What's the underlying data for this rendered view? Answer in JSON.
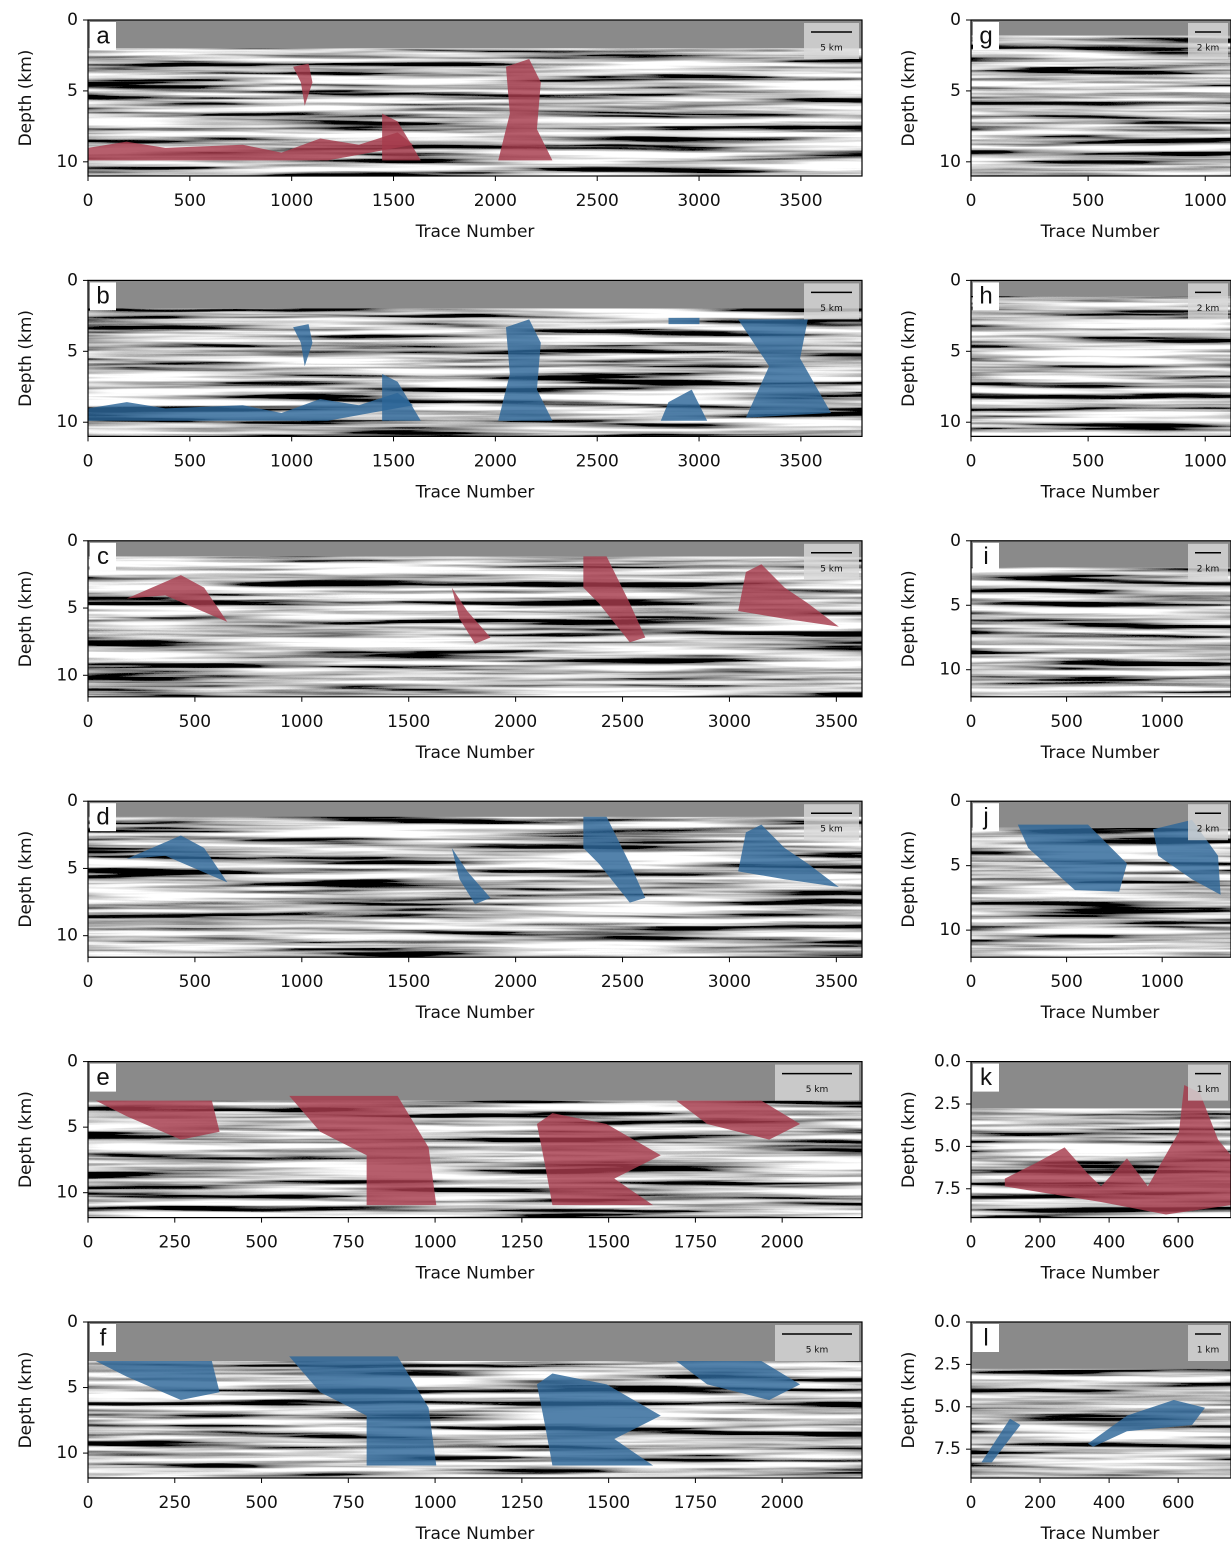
{
  "chart_data": [
    {
      "type": "image",
      "label": "a",
      "xlabel": "Trace Number",
      "ylabel": "Depth (km)",
      "scale_bar": "5 km",
      "mask_color": "#a63a4c",
      "xlim": [
        0,
        3800
      ],
      "ylim": [
        11,
        0
      ],
      "xticks": [
        0,
        500,
        1000,
        1500,
        2000,
        2500,
        3000,
        3500
      ],
      "yticks": [
        0,
        5,
        10
      ]
    },
    {
      "type": "image",
      "label": "b",
      "xlabel": "Trace Number",
      "ylabel": "Depth (km)",
      "scale_bar": "5 km",
      "mask_color": "#2d6699",
      "xlim": [
        0,
        3800
      ],
      "ylim": [
        11,
        0
      ],
      "xticks": [
        0,
        500,
        1000,
        1500,
        2000,
        2500,
        3000,
        3500
      ],
      "yticks": [
        0,
        5,
        10
      ]
    },
    {
      "type": "image",
      "label": "c",
      "xlabel": "Trace Number",
      "ylabel": "Depth (km)",
      "scale_bar": "5 km",
      "mask_color": "#a63a4c",
      "xlim": [
        0,
        3620
      ],
      "ylim": [
        11.6,
        0
      ],
      "xticks": [
        0,
        500,
        1000,
        1500,
        2000,
        2500,
        3000,
        3500
      ],
      "yticks": [
        0,
        5,
        10
      ]
    },
    {
      "type": "image",
      "label": "d",
      "xlabel": "Trace Number",
      "ylabel": "Depth (km)",
      "scale_bar": "5 km",
      "mask_color": "#2d6699",
      "xlim": [
        0,
        3620
      ],
      "ylim": [
        11.6,
        0
      ],
      "xticks": [
        0,
        500,
        1000,
        1500,
        2000,
        2500,
        3000,
        3500
      ],
      "yticks": [
        0,
        5,
        10
      ]
    },
    {
      "type": "image",
      "label": "e",
      "xlabel": "Trace Number",
      "ylabel": "Depth (km)",
      "scale_bar": "5 km",
      "mask_color": "#a63a4c",
      "xlim": [
        0,
        2230
      ],
      "ylim": [
        11.9,
        0
      ],
      "xticks": [
        0,
        250,
        500,
        750,
        1000,
        1250,
        1500,
        1750,
        2000
      ],
      "yticks": [
        0,
        5,
        10
      ]
    },
    {
      "type": "image",
      "label": "f",
      "xlabel": "Trace Number",
      "ylabel": "Depth (km)",
      "scale_bar": "5 km",
      "mask_color": "#2d6699",
      "xlim": [
        0,
        2230
      ],
      "ylim": [
        11.9,
        0
      ],
      "xticks": [
        0,
        250,
        500,
        750,
        1000,
        1250,
        1500,
        1750,
        2000
      ],
      "yticks": [
        0,
        5,
        10
      ]
    },
    {
      "type": "image",
      "label": "g",
      "xlabel": "Trace Number",
      "ylabel": "Depth (km)",
      "scale_bar": "2 km",
      "mask_color": "#a63a4c",
      "xlim": [
        0,
        1110
      ],
      "ylim": [
        11,
        0
      ],
      "xticks": [
        0,
        500,
        1000
      ],
      "yticks": [
        0,
        5,
        10
      ]
    },
    {
      "type": "image",
      "label": "h",
      "xlabel": "Trace Number",
      "ylabel": "Depth (km)",
      "scale_bar": "2 km",
      "mask_color": "#2d6699",
      "xlim": [
        0,
        1110
      ],
      "ylim": [
        11,
        0
      ],
      "xticks": [
        0,
        500,
        1000
      ],
      "yticks": [
        0,
        5,
        10
      ]
    },
    {
      "type": "image",
      "label": "i",
      "xlabel": "Trace Number",
      "ylabel": "Depth (km)",
      "scale_bar": "2 km",
      "mask_color": "#a63a4c",
      "xlim": [
        0,
        1360
      ],
      "ylim": [
        12.1,
        0
      ],
      "xticks": [
        0,
        500,
        1000
      ],
      "yticks": [
        0,
        5,
        10
      ]
    },
    {
      "type": "image",
      "label": "j",
      "xlabel": "Trace Number",
      "ylabel": "Depth (km)",
      "scale_bar": "2 km",
      "mask_color": "#2d6699",
      "xlim": [
        0,
        1360
      ],
      "ylim": [
        12.1,
        0
      ],
      "xticks": [
        0,
        500,
        1000
      ],
      "yticks": [
        0,
        5,
        10
      ]
    },
    {
      "type": "image",
      "label": "k",
      "xlabel": "Trace Number",
      "ylabel": "Depth (km)",
      "scale_bar": "1 km",
      "mask_color": "#a63a4c",
      "xlim": [
        0,
        753
      ],
      "ylim": [
        9.2,
        0
      ],
      "xticks": [
        0,
        200,
        400,
        600
      ],
      "yticks": [
        {
          "value": 0,
          "label": "0.0"
        },
        2.5,
        {
          "value": 5,
          "label": "5.0"
        },
        {
          "value": 7.5,
          "label": "7.5"
        }
      ]
    },
    {
      "type": "image",
      "label": "l",
      "xlabel": "Trace Number",
      "ylabel": "Depth (km)",
      "scale_bar": "1 km",
      "mask_color": "#2d6699",
      "xlim": [
        0,
        753
      ],
      "ylim": [
        9.2,
        0
      ],
      "xticks": [
        0,
        200,
        400,
        600
      ],
      "yticks": [
        {
          "value": 0,
          "label": "0.0"
        },
        2.5,
        {
          "value": 5,
          "label": "5.0"
        },
        {
          "value": 7.5,
          "label": "7.5"
        }
      ]
    }
  ]
}
